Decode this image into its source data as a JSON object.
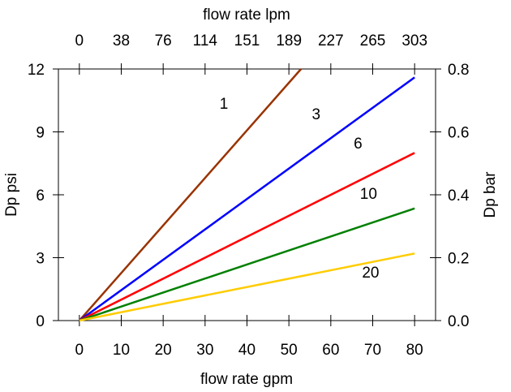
{
  "chart_data": {
    "type": "line",
    "xlabel_bottom": "flow rate gpm",
    "xlabel_top": "flow rate lpm",
    "ylabel_left": "Dp psi",
    "ylabel_right": "Dp bar",
    "xlim": [
      -5,
      85
    ],
    "ylim": [
      0,
      12
    ],
    "y2lim": [
      0,
      0.8
    ],
    "x_ticks": [
      "0",
      "10",
      "20",
      "30",
      "40",
      "50",
      "60",
      "70",
      "80"
    ],
    "top_ticks": [
      "0",
      "38",
      "76",
      "114",
      "151",
      "189",
      "227",
      "265",
      "303"
    ],
    "y_ticks": [
      "0",
      "3",
      "6",
      "9",
      "12"
    ],
    "y2_ticks": [
      "0.0",
      "0.2",
      "0.4",
      "0.6",
      "0.8"
    ],
    "grid": false,
    "series": [
      {
        "name": "1",
        "color": "#993300",
        "x": [
          0,
          52.9
        ],
        "y": [
          0,
          12
        ]
      },
      {
        "name": "3",
        "color": "#0000ff",
        "x": [
          0,
          80
        ],
        "y": [
          0,
          11.6
        ]
      },
      {
        "name": "6",
        "color": "#ff0000",
        "x": [
          0,
          80
        ],
        "y": [
          0,
          8.0
        ]
      },
      {
        "name": "10",
        "color": "#008000",
        "x": [
          0,
          80
        ],
        "y": [
          0,
          5.35
        ]
      },
      {
        "name": "20",
        "color": "#ffcc00",
        "x": [
          0,
          80
        ],
        "y": [
          0,
          3.2
        ]
      }
    ]
  }
}
